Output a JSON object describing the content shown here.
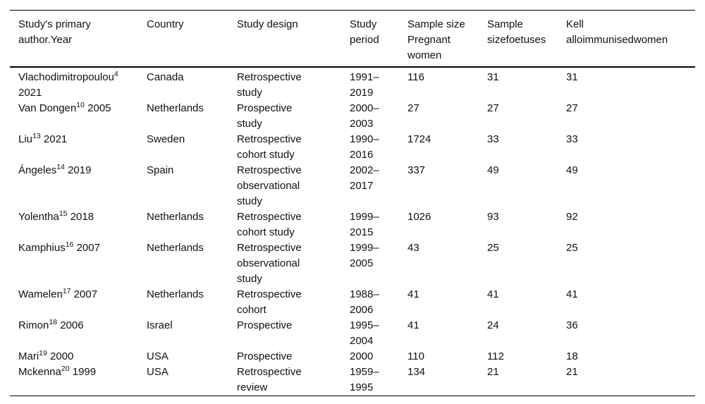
{
  "page": {
    "background_color": "#ffffff",
    "text_color": "#111111",
    "rule_color": "#000000"
  },
  "table": {
    "columns": [
      {
        "label": "Study's primary author.Year"
      },
      {
        "label": "Country"
      },
      {
        "label": "Study design"
      },
      {
        "label": "Study period"
      },
      {
        "label": "Sample size Pregnant women"
      },
      {
        "label": "Sample sizefoetuses"
      },
      {
        "label": "Kell alloimmunisedwomen"
      }
    ],
    "rows": [
      {
        "author": "Vlachodimitropoulou",
        "ref": "4",
        "year": "2021",
        "country": "Canada",
        "design": "Retrospective study",
        "period": "1991–2019",
        "pregnant": "116",
        "foetuses": "31",
        "kell": "31"
      },
      {
        "author": "Van Dongen",
        "ref": "10",
        "year": "2005",
        "country": "Netherlands",
        "design": "Prospective study",
        "period": "2000–2003",
        "pregnant": "27",
        "foetuses": "27",
        "kell": "27"
      },
      {
        "author": "Liu",
        "ref": "13",
        "year": "2021",
        "country": "Sweden",
        "design": "Retrospective cohort study",
        "period": "1990–2016",
        "pregnant": "1724",
        "foetuses": "33",
        "kell": "33"
      },
      {
        "author": "Ángeles",
        "ref": "14",
        "year": "2019",
        "country": "Spain",
        "design": "Retrospective observational study",
        "period": "2002–2017",
        "pregnant": "337",
        "foetuses": "49",
        "kell": "49"
      },
      {
        "author": "Yolentha",
        "ref": "15",
        "year": "2018",
        "country": "Netherlands",
        "design": "Retrospective cohort study",
        "period": "1999–2015",
        "pregnant": "1026",
        "foetuses": "93",
        "kell": "92"
      },
      {
        "author": "Kamphius",
        "ref": "16",
        "year": "2007",
        "country": "Netherlands",
        "design": "Retrospective observational study",
        "period": "1999–2005",
        "pregnant": "43",
        "foetuses": "25",
        "kell": "25"
      },
      {
        "author": "Wamelen",
        "ref": "17",
        "year": "2007",
        "country": "Netherlands",
        "design": "Retrospective cohort",
        "period": "1988–2006",
        "pregnant": "41",
        "foetuses": "41",
        "kell": "41"
      },
      {
        "author": "Rimon",
        "ref": "18",
        "year": "2006",
        "country": "Israel",
        "design": "Prospective",
        "period": "1995–2004",
        "pregnant": "41",
        "foetuses": "24",
        "kell": "36"
      },
      {
        "author": "Mari",
        "ref": "19",
        "year": "2000",
        "country": "USA",
        "design": "Prospective",
        "period": "2000",
        "pregnant": "110",
        "foetuses": "112",
        "kell": "18"
      },
      {
        "author": "Mckenna",
        "ref": "20",
        "year": "1999",
        "country": "USA",
        "design": "Retrospective review",
        "period": "1959–1995",
        "pregnant": "134",
        "foetuses": "21",
        "kell": "21"
      }
    ]
  }
}
